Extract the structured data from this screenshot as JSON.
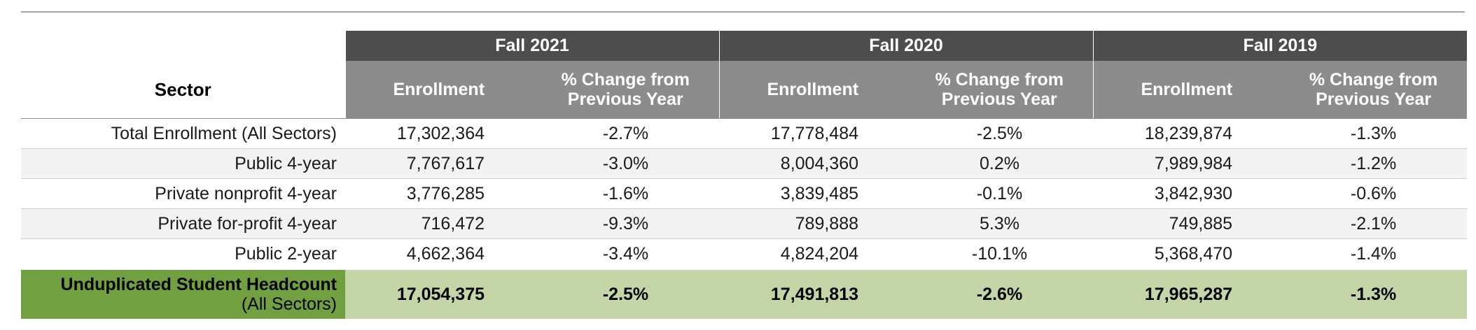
{
  "table": {
    "sector_header": "Sector",
    "years": [
      "Fall 2021",
      "Fall 2020",
      "Fall 2019"
    ],
    "col_enrollment": "Enrollment",
    "col_change": "% Change from Previous Year",
    "rows": [
      {
        "sector": "Total Enrollment (All Sectors)",
        "values": [
          "17,302,364",
          "-2.7%",
          "17,778,484",
          "-2.5%",
          "18,239,874",
          "-1.3%"
        ]
      },
      {
        "sector": "Public 4-year",
        "values": [
          "7,767,617",
          "-3.0%",
          "8,004,360",
          "0.2%",
          "7,989,984",
          "-1.2%"
        ]
      },
      {
        "sector": "Private nonprofit 4-year",
        "values": [
          "3,776,285",
          "-1.6%",
          "3,839,485",
          "-0.1%",
          "3,842,930",
          "-0.6%"
        ]
      },
      {
        "sector": "Private for-profit 4-year",
        "values": [
          "716,472",
          "-9.3%",
          "789,888",
          "5.3%",
          "749,885",
          "-2.1%"
        ]
      },
      {
        "sector": "Public 2-year",
        "values": [
          "4,662,364",
          "-3.4%",
          "4,824,204",
          "-10.1%",
          "5,368,470",
          "-1.4%"
        ]
      }
    ],
    "total": {
      "label_line1": "Unduplicated Student Headcount",
      "label_line2": "(All Sectors)",
      "values": [
        "17,054,375",
        "-2.5%",
        "17,491,813",
        "-2.6%",
        "17,965,287",
        "-1.3%"
      ]
    }
  },
  "colors": {
    "year_header": "#4d4d4d",
    "sub_header": "#8c8c8c",
    "total_label": "#70a040",
    "total_row": "#c4d6a8"
  }
}
